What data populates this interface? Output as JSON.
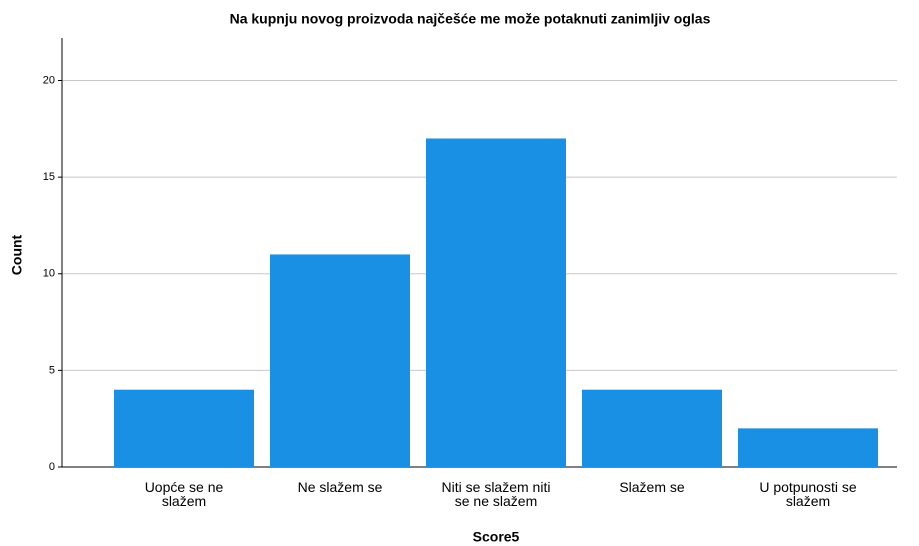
{
  "chart_data": {
    "type": "bar",
    "title": "Na kupnju novog proizvoda najčešće me može potaknuti zanimljiv oglas",
    "x_label": "Score5",
    "y_label": "Count",
    "categories": [
      "Uopće se ne slažem",
      "Ne slažem se",
      "Niti se slažem niti se ne slažem",
      "Slažem se",
      "U potpunosti se slažem"
    ],
    "values": [
      4,
      11,
      17,
      4,
      2
    ],
    "color": "#1a90e5",
    "ylim": [
      0,
      22.2
    ],
    "yticks": [
      0,
      5,
      10,
      15,
      20
    ],
    "grid": true
  }
}
